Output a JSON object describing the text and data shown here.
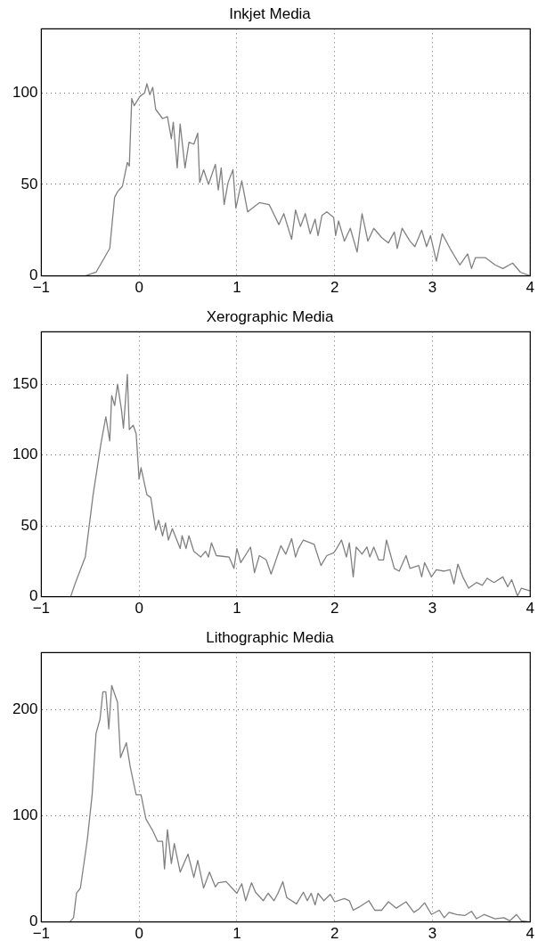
{
  "chart_data": [
    {
      "type": "line",
      "title": "Inkjet Media",
      "color": "#808080",
      "marker": "none",
      "grid": true,
      "xlim": [
        -1,
        4
      ],
      "xticks": [
        -1,
        0,
        1,
        2,
        3,
        4
      ],
      "ylim": [
        0,
        135
      ],
      "yticks": [
        0,
        50,
        100
      ],
      "x": [
        -1,
        -0.55,
        -0.5,
        -0.44,
        -0.3,
        -0.25,
        -0.22,
        -0.17,
        -0.12,
        -0.1,
        -0.075,
        -0.05,
        0.007,
        0.056,
        0.08,
        0.11,
        0.14,
        0.17,
        0.24,
        0.29,
        0.33,
        0.35,
        0.39,
        0.42,
        0.47,
        0.51,
        0.56,
        0.6,
        0.62,
        0.66,
        0.71,
        0.78,
        0.81,
        0.84,
        0.87,
        0.91,
        0.96,
        0.99,
        1.05,
        1.11,
        1.23,
        1.33,
        1.43,
        1.48,
        1.56,
        1.6,
        1.65,
        1.7,
        1.75,
        1.8,
        1.83,
        1.87,
        1.92,
        1.99,
        2.01,
        2.04,
        2.1,
        2.16,
        2.23,
        2.28,
        2.34,
        2.4,
        2.48,
        2.55,
        2.61,
        2.64,
        2.69,
        2.77,
        2.82,
        2.89,
        2.94,
        2.98,
        3.04,
        3.1,
        3.18,
        3.28,
        3.36,
        3.4,
        3.44,
        3.54,
        3.64,
        3.72,
        3.82,
        3.9,
        4
      ],
      "values": [
        0,
        0,
        1,
        2,
        15,
        43,
        46,
        49,
        62,
        60,
        97,
        93,
        98,
        100,
        105,
        99,
        103,
        91,
        86,
        87,
        75,
        84,
        59,
        83,
        59,
        73,
        72,
        78,
        51,
        58,
        50,
        61,
        47,
        59,
        39,
        51,
        58,
        37,
        52,
        35,
        40,
        39,
        28,
        34,
        20,
        36,
        27,
        34,
        23,
        31,
        22,
        33,
        35,
        32,
        22,
        30,
        19,
        26,
        13,
        34,
        19,
        26,
        21,
        18,
        24,
        15,
        26,
        19,
        16,
        25,
        16,
        22,
        8,
        23,
        15,
        6,
        12,
        4,
        10,
        10,
        6,
        4,
        7,
        2,
        0
      ]
    },
    {
      "type": "line",
      "title": "Xerographic Media",
      "color": "#808080",
      "marker": "none",
      "grid": true,
      "xlim": [
        -1,
        4
      ],
      "xticks": [
        -1,
        0,
        1,
        2,
        3,
        4
      ],
      "ylim": [
        0,
        187
      ],
      "yticks": [
        0,
        50,
        100,
        150
      ],
      "x": [
        -1,
        -0.7,
        -0.65,
        -0.55,
        -0.47,
        -0.39,
        -0.34,
        -0.3,
        -0.28,
        -0.25,
        -0.22,
        -0.18,
        -0.16,
        -0.12,
        -0.1,
        -0.06,
        -0.03,
        0,
        0.02,
        0.08,
        0.12,
        0.17,
        0.2,
        0.24,
        0.27,
        0.3,
        0.34,
        0.42,
        0.44,
        0.48,
        0.51,
        0.56,
        0.63,
        0.68,
        0.71,
        0.74,
        0.79,
        0.92,
        0.97,
        1,
        1.04,
        1.14,
        1.18,
        1.23,
        1.3,
        1.35,
        1.45,
        1.5,
        1.56,
        1.6,
        1.63,
        1.68,
        1.79,
        1.86,
        1.92,
        1.99,
        2.02,
        2.07,
        2.12,
        2.15,
        2.19,
        2.22,
        2.28,
        2.33,
        2.36,
        2.4,
        2.45,
        2.5,
        2.53,
        2.61,
        2.66,
        2.73,
        2.77,
        2.86,
        2.89,
        2.92,
        2.99,
        3.04,
        3.12,
        3.18,
        3.22,
        3.26,
        3.31,
        3.37,
        3.45,
        3.51,
        3.56,
        3.63,
        3.72,
        3.77,
        3.81,
        3.87,
        3.91,
        4
      ],
      "values": [
        0,
        0,
        10,
        28,
        72,
        108,
        127,
        110,
        142,
        135,
        150,
        132,
        119,
        157,
        118,
        121,
        115,
        83,
        91,
        72,
        70,
        47,
        54,
        43,
        52,
        40,
        48,
        34,
        43,
        34,
        43,
        32,
        28,
        32,
        28,
        38,
        29,
        28,
        20,
        34,
        24,
        35,
        17,
        29,
        26,
        16,
        36,
        30,
        41,
        28,
        34,
        40,
        37,
        22,
        29,
        31,
        34,
        40,
        28,
        38,
        14,
        35,
        30,
        35,
        28,
        35,
        26,
        26,
        40,
        20,
        18,
        29,
        20,
        22,
        14,
        24,
        14,
        19,
        18,
        19,
        9,
        23,
        14,
        6,
        10,
        8,
        13,
        10,
        14,
        7,
        12,
        0.5,
        6,
        4
      ]
    },
    {
      "type": "line",
      "title": "Lithographic Media",
      "color": "#808080",
      "marker": "none",
      "grid": true,
      "xlim": [
        -1,
        4
      ],
      "xticks": [
        -1,
        0,
        1,
        2,
        3,
        4
      ],
      "ylim": [
        0,
        254
      ],
      "yticks": [
        0,
        100,
        200
      ],
      "x": [
        -1,
        -0.71,
        -0.67,
        -0.64,
        -0.6,
        -0.53,
        -0.48,
        -0.44,
        -0.4,
        -0.37,
        -0.34,
        -0.31,
        -0.28,
        -0.22,
        -0.19,
        -0.13,
        -0.09,
        -0.03,
        0.02,
        0.07,
        0.14,
        0.19,
        0.24,
        0.26,
        0.29,
        0.33,
        0.36,
        0.42,
        0.5,
        0.56,
        0.6,
        0.66,
        0.72,
        0.78,
        0.81,
        0.89,
        1,
        1.05,
        1.09,
        1.15,
        1.19,
        1.27,
        1.32,
        1.38,
        1.42,
        1.47,
        1.51,
        1.61,
        1.68,
        1.72,
        1.76,
        1.8,
        1.83,
        1.89,
        1.955,
        2,
        2.1,
        2.15,
        2.19,
        2.25,
        2.35,
        2.41,
        2.48,
        2.55,
        2.63,
        2.73,
        2.81,
        2.86,
        2.92,
        2.99,
        3.07,
        3.12,
        3.17,
        3.25,
        3.33,
        3.4,
        3.45,
        3.53,
        3.64,
        3.73,
        3.79,
        3.86,
        3.91,
        4
      ],
      "values": [
        0,
        0,
        4,
        27,
        32,
        77,
        120,
        178,
        191,
        217,
        217,
        182,
        223,
        207,
        155,
        169,
        146,
        120,
        120,
        97,
        86,
        76,
        76,
        50,
        87,
        55,
        74,
        47,
        64,
        42,
        58,
        32,
        47,
        33,
        37,
        38,
        27,
        36,
        20,
        37,
        28,
        20,
        27,
        20,
        27,
        38,
        23,
        17,
        28,
        20,
        27,
        16,
        27,
        20,
        26,
        19,
        22,
        20,
        11,
        14,
        20,
        11,
        11,
        19,
        13,
        19,
        9,
        12,
        18,
        7,
        11,
        4,
        9,
        7,
        6,
        10,
        3,
        7,
        3,
        4,
        1,
        7,
        1,
        0
      ]
    }
  ]
}
